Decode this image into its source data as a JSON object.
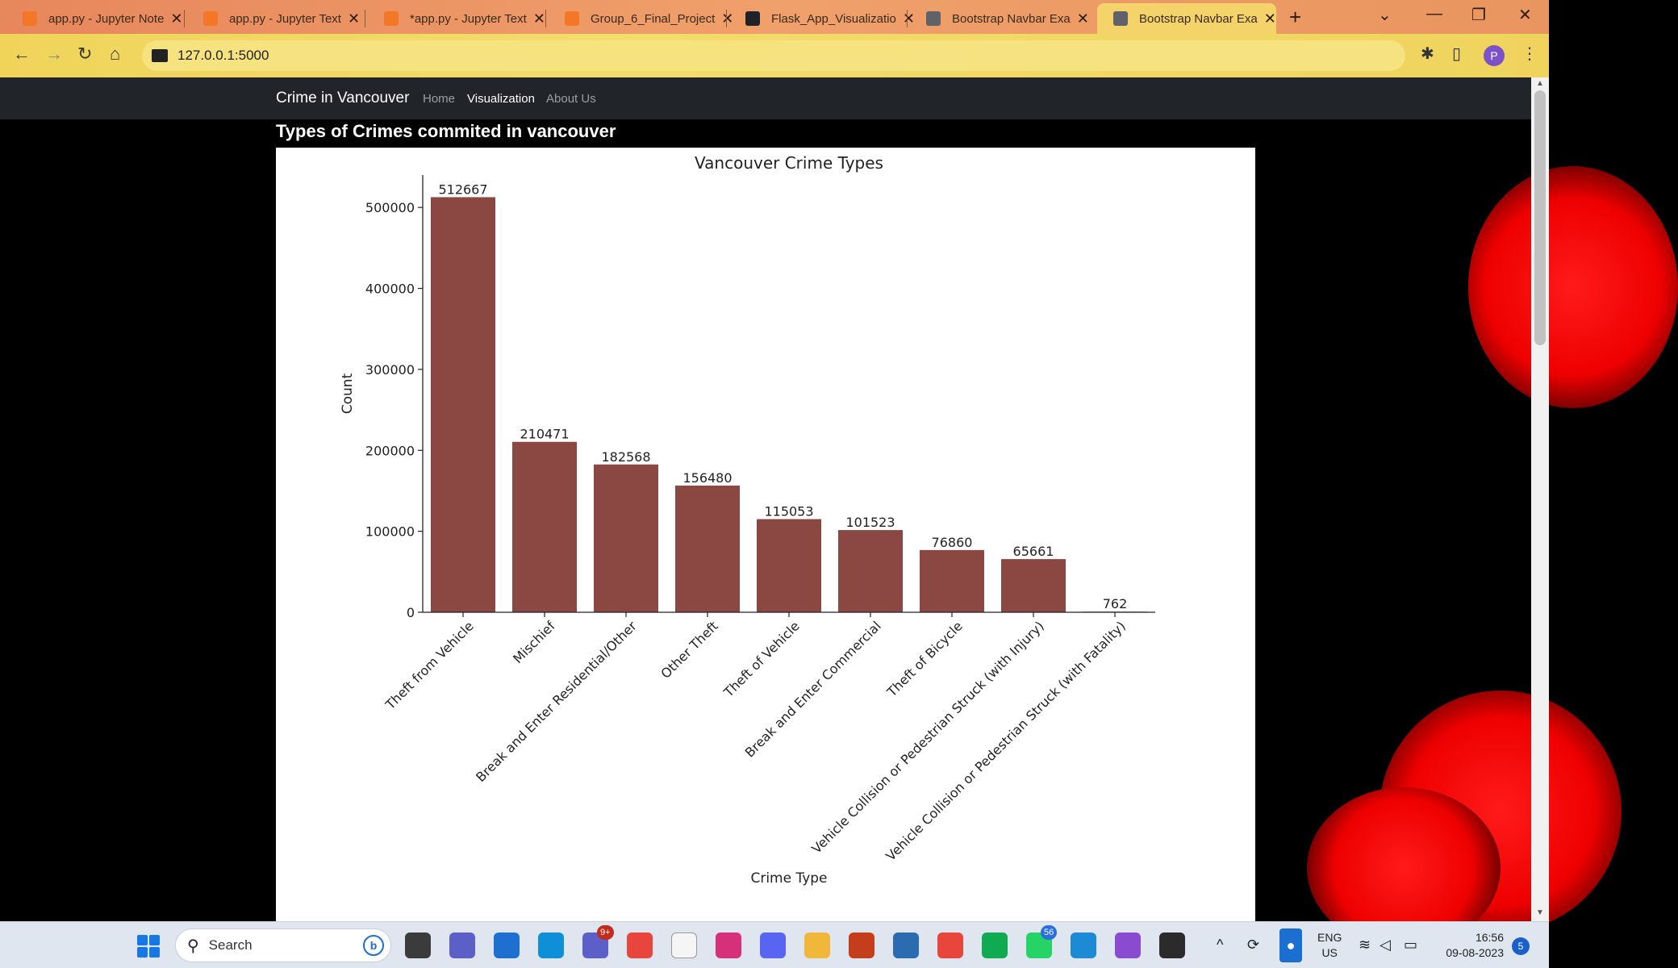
{
  "browser": {
    "tabs": [
      {
        "title": "app.py - Jupyter Note",
        "favicon_color": "#f37726"
      },
      {
        "title": "app.py - Jupyter Text",
        "favicon_color": "#f37726"
      },
      {
        "title": "*app.py - Jupyter Text",
        "favicon_color": "#f37726"
      },
      {
        "title": "Group_6_Final_Project",
        "favicon_color": "#f37726"
      },
      {
        "title": "Flask_App_Visualizatio",
        "favicon_color": "#1f2328"
      },
      {
        "title": "Bootstrap Navbar Exa",
        "favicon_color": "#5f6368"
      },
      {
        "title": "Bootstrap Navbar Exa",
        "favicon_color": "#5f6368",
        "active": true
      }
    ],
    "close_glyph": "✕",
    "new_tab_glyph": "+",
    "url": "127.0.0.1:5000",
    "profile_initial": "P"
  },
  "site": {
    "brand": "Crime in Vancouver",
    "nav": [
      {
        "label": "Home",
        "active": false
      },
      {
        "label": "Visualization",
        "active": true
      },
      {
        "label": "About Us",
        "active": false
      }
    ],
    "heading": "Types of Crimes commited in vancouver"
  },
  "chart_data": {
    "type": "bar",
    "title": "Vancouver Crime Types",
    "xlabel": "Crime Type",
    "ylabel": "Count",
    "ylim": [
      0,
      540000
    ],
    "yticks": [
      0,
      100000,
      200000,
      300000,
      400000,
      500000
    ],
    "bar_color": "#8b4742",
    "grid": false,
    "categories": [
      "Theft from Vehicle",
      "Mischief",
      "Break and Enter Residential/Other",
      "Other Theft",
      "Theft of Vehicle",
      "Break and Enter Commercial",
      "Theft of Bicycle",
      "Vehicle Collision or Pedestrian Struck (with Injury)",
      "Vehicle Collision or Pedestrian Struck (with Fatality)"
    ],
    "values": [
      512667,
      210471,
      182568,
      156480,
      115053,
      101523,
      76860,
      65661,
      762
    ]
  },
  "taskbar": {
    "search_placeholder": "Search",
    "bing_glyph": "b",
    "apps": [
      {
        "name": "file-explorer-app",
        "color": "#3b3b3b"
      },
      {
        "name": "teams-chat-app",
        "color": "#5b5fc7"
      },
      {
        "name": "store-app",
        "color": "#1f6fd0"
      },
      {
        "name": "edge-app",
        "color": "#0f8fd6"
      },
      {
        "name": "teams-app",
        "color": "#5b5fc7",
        "badge": "9+"
      },
      {
        "name": "chrome-app",
        "color": "#e8453c"
      },
      {
        "name": "notepad-app",
        "color": "#f5f5f5"
      },
      {
        "name": "instagram-app",
        "color": "#d6307b"
      },
      {
        "name": "discord-app",
        "color": "#5865f2"
      },
      {
        "name": "folder-app",
        "color": "#f0b73a"
      },
      {
        "name": "powerpoint-app",
        "color": "#c43e1c"
      },
      {
        "name": "window-app",
        "color": "#2b6cb0"
      },
      {
        "name": "chrome-profile-app",
        "color": "#e8453c"
      },
      {
        "name": "mongodb-app",
        "color": "#10aa50"
      },
      {
        "name": "whatsapp-app",
        "color": "#25d366",
        "badge": "56"
      },
      {
        "name": "vscode-app",
        "color": "#1d8ad6"
      },
      {
        "name": "visual-studio-app",
        "color": "#8a4bd1"
      },
      {
        "name": "terminal-app",
        "color": "#2b2b2b"
      }
    ],
    "lang_top": "ENG",
    "lang_bottom": "US",
    "time": "16:56",
    "date": "09-08-2023",
    "notifications": "5"
  }
}
